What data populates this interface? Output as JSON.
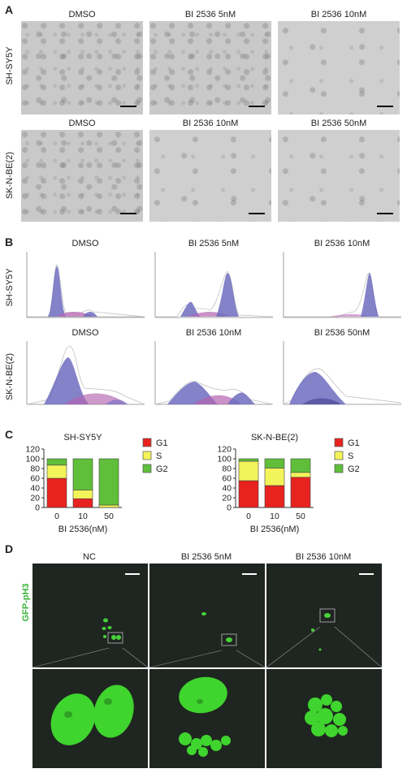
{
  "panelA": {
    "label": "A",
    "row1": {
      "cell": "SH-SY5Y",
      "titles": [
        "DMSO",
        "BI 2536 5nM",
        "BI 2536 10nM"
      ]
    },
    "row2": {
      "cell": "SK-N-BE(2)",
      "titles": [
        "DMSO",
        "BI 2536 10nM",
        "BI 2536 50nM"
      ]
    }
  },
  "panelB": {
    "label": "B",
    "row1": {
      "cell": "SH-SY5Y",
      "titles": [
        "DMSO",
        "BI 2536 5nM",
        "BI 2536 10nM"
      ]
    },
    "row2": {
      "cell": "SK-N-BE(2)",
      "titles": [
        "DMSO",
        "BI 2536 10nM",
        "BI 2536 50nM"
      ]
    }
  },
  "panelC": {
    "label": "C",
    "colors": {
      "G1": "#e8231f",
      "S": "#f3f35a",
      "G2": "#5fbf3a"
    }
  },
  "panelD": {
    "label": "D",
    "ylabel": "GFP-pH3",
    "titles": [
      "NC",
      "BI 2536 5nM",
      "BI 2536 10nM"
    ]
  },
  "chart_data": [
    {
      "type": "bar",
      "title": "SH-SY5Y",
      "xlabel": "BI 2536(nM)",
      "categories": [
        "0",
        "10",
        "50"
      ],
      "ylim": [
        0,
        120
      ],
      "yticks": [
        "0",
        "20",
        "40",
        "60",
        "80",
        "100",
        "120"
      ],
      "stacked": true,
      "series": [
        {
          "name": "G1",
          "values": [
            60,
            18,
            0
          ]
        },
        {
          "name": "S",
          "values": [
            27,
            18,
            5
          ]
        },
        {
          "name": "G2",
          "values": [
            13,
            64,
            95
          ]
        }
      ]
    },
    {
      "type": "bar",
      "title": "SK-N-BE(2)",
      "xlabel": "BI 2536(nM)",
      "categories": [
        "0",
        "10",
        "50"
      ],
      "ylim": [
        0,
        120
      ],
      "yticks": [
        "0",
        "20",
        "40",
        "60",
        "80",
        "100",
        "120"
      ],
      "stacked": true,
      "series": [
        {
          "name": "G1",
          "values": [
            55,
            45,
            62
          ]
        },
        {
          "name": "S",
          "values": [
            40,
            36,
            10
          ]
        },
        {
          "name": "G2",
          "values": [
            5,
            19,
            28
          ]
        }
      ]
    }
  ]
}
